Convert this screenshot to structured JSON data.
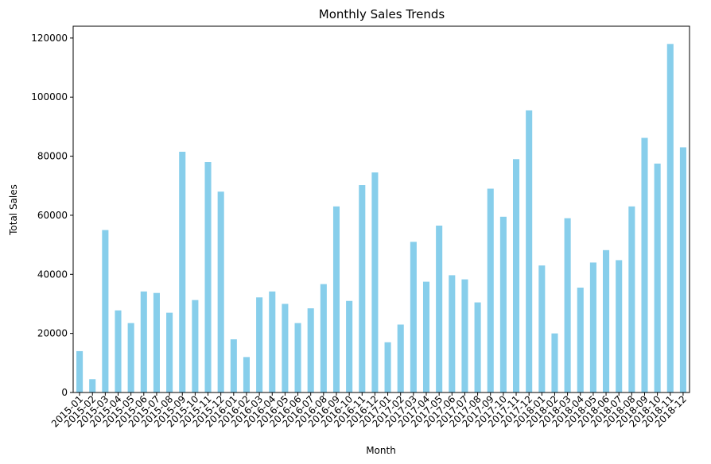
{
  "colors": {
    "bar": "#87ceeb",
    "axis": "#000000",
    "background": "#ffffff"
  },
  "chart_data": {
    "type": "bar",
    "title": "Monthly Sales Trends",
    "xlabel": "Month",
    "ylabel": "Total Sales",
    "ylim": [
      0,
      124000
    ],
    "yticks": [
      0,
      20000,
      40000,
      60000,
      80000,
      100000,
      120000
    ],
    "ytick_labels": [
      "0",
      "20000",
      "40000",
      "60000",
      "80000",
      "100000",
      "120000"
    ],
    "grid": false,
    "categories": [
      "2015-01",
      "2015-02",
      "2015-03",
      "2015-04",
      "2015-05",
      "2015-06",
      "2015-07",
      "2015-08",
      "2015-09",
      "2015-10",
      "2015-11",
      "2015-12",
      "2016-01",
      "2016-02",
      "2016-03",
      "2016-04",
      "2016-05",
      "2016-06",
      "2016-07",
      "2016-08",
      "2016-09",
      "2016-10",
      "2016-11",
      "2016-12",
      "2017-01",
      "2017-02",
      "2017-03",
      "2017-04",
      "2017-05",
      "2017-06",
      "2017-07",
      "2017-08",
      "2017-09",
      "2017-10",
      "2017-11",
      "2017-12",
      "2018-01",
      "2018-02",
      "2018-03",
      "2018-04",
      "2018-05",
      "2018-06",
      "2018-07",
      "2018-08",
      "2018-09",
      "2018-10",
      "2018-11",
      "2018-12"
    ],
    "values": [
      14000,
      4500,
      55000,
      27800,
      23500,
      34200,
      33700,
      27000,
      81500,
      31300,
      78000,
      68000,
      18000,
      12000,
      32200,
      34200,
      30000,
      23500,
      28500,
      36700,
      63000,
      31000,
      70200,
      74500,
      17000,
      23000,
      51000,
      37500,
      56500,
      39700,
      38300,
      30500,
      69000,
      59500,
      79000,
      95500,
      43000,
      20000,
      59000,
      35500,
      44000,
      48200,
      44800,
      63000,
      86200,
      77500,
      118000,
      83000
    ]
  }
}
